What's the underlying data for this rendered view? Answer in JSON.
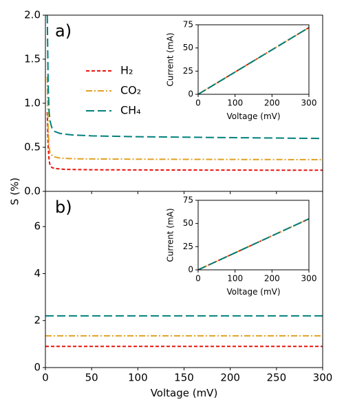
{
  "chart_data": [
    {
      "type": "line",
      "label": "a)",
      "ylabel": "S (%)",
      "x": [
        2,
        3,
        4,
        5,
        7,
        10,
        15,
        20,
        30,
        50,
        100,
        200,
        300
      ],
      "series": [
        {
          "name": "H₂",
          "color": "#e8120c",
          "values": [
            0.9,
            0.5,
            0.35,
            0.3,
            0.27,
            0.26,
            0.255,
            0.25,
            0.248,
            0.245,
            0.243,
            0.241,
            0.24
          ]
        },
        {
          "name": "CO₂",
          "color": "#e0a020",
          "values": [
            1.3,
            0.7,
            0.5,
            0.44,
            0.41,
            0.39,
            0.38,
            0.375,
            0.37,
            0.368,
            0.365,
            0.362,
            0.36
          ]
        },
        {
          "name": "CH₄",
          "color": "#00807a",
          "values": [
            2.0,
            1.2,
            0.9,
            0.8,
            0.72,
            0.68,
            0.66,
            0.65,
            0.64,
            0.63,
            0.62,
            0.61,
            0.6
          ]
        }
      ],
      "xlim": [
        0,
        300
      ],
      "xticks": [
        0,
        50,
        100,
        150,
        200,
        250,
        300
      ],
      "ylim": [
        0,
        2
      ],
      "yticks": [
        {
          "value": 0,
          "label": "0.0"
        },
        {
          "value": 0.5,
          "label": "0.5"
        },
        {
          "value": 1,
          "label": "1.0"
        },
        {
          "value": 1.5,
          "label": "1.5"
        },
        {
          "value": 2,
          "label": "2.0"
        }
      ],
      "legend": "upper left"
    },
    {
      "type": "line",
      "label": "b)",
      "xlabel": "Voltage (mV)",
      "x": [
        0,
        300
      ],
      "series": [
        {
          "color": "#e8120c",
          "values": [
            0.9,
            0.9
          ]
        },
        {
          "color": "#e0a020",
          "values": [
            1.35,
            1.35
          ]
        },
        {
          "color": "#00807a",
          "values": [
            2.2,
            2.2
          ]
        }
      ],
      "xlim": [
        0,
        300
      ],
      "xticks": [
        0,
        50,
        100,
        150,
        200,
        250,
        300
      ],
      "ylim": [
        0,
        7.5
      ],
      "yticks": [
        0,
        2,
        4,
        6
      ]
    },
    {
      "type": "line",
      "xlabel": "Voltage (mV)",
      "ylabel": "Current (mA)",
      "x": [
        0,
        300
      ],
      "series": [
        {
          "color": "#e8120c",
          "values": [
            0,
            72
          ]
        },
        {
          "color": "#e0a020",
          "values": [
            0,
            72
          ]
        },
        {
          "color": "#00807a",
          "values": [
            0,
            72
          ]
        }
      ],
      "xlim": [
        0,
        300
      ],
      "xticks": [
        0,
        100,
        200,
        300
      ],
      "ylim": [
        0,
        75
      ],
      "yticks": [
        0,
        25,
        50,
        75
      ]
    },
    {
      "type": "line",
      "xlabel": "Voltage (mV)",
      "ylabel": "Current (mA)",
      "x": [
        0,
        300
      ],
      "series": [
        {
          "color": "#e8120c",
          "values": [
            0,
            55
          ]
        },
        {
          "color": "#e0a020",
          "values": [
            0,
            55
          ]
        },
        {
          "color": "#00807a",
          "values": [
            0,
            55
          ]
        }
      ],
      "xlim": [
        0,
        300
      ],
      "xticks": [
        0,
        100,
        200,
        300
      ],
      "ylim": [
        0,
        75
      ],
      "yticks": [
        0,
        25,
        50,
        75
      ]
    }
  ]
}
